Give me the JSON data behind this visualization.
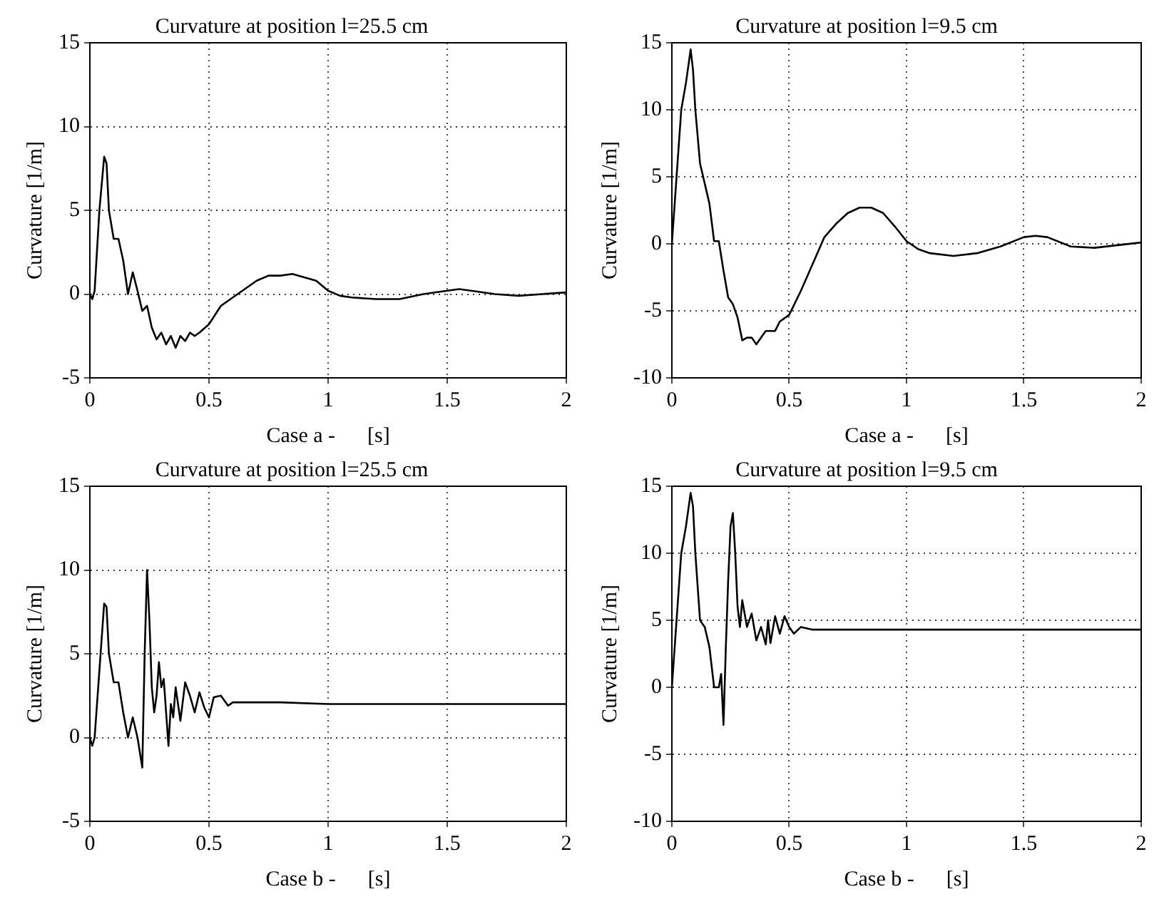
{
  "chart_data": [
    {
      "type": "line",
      "title": "Curvature at position l=25.5 cm",
      "xlabel": "Case a -      [s]",
      "ylabel": "Curvature [1/m]",
      "xlim": [
        0,
        2
      ],
      "xticks": [
        0,
        0.5,
        1,
        1.5,
        2
      ],
      "ylim": [
        -5,
        15
      ],
      "yticks": [
        -5,
        0,
        5,
        10,
        15
      ],
      "grid": true,
      "legend": false,
      "marker": "none",
      "line_style": "solid",
      "x": [
        0,
        0.01,
        0.02,
        0.04,
        0.06,
        0.07,
        0.08,
        0.1,
        0.12,
        0.14,
        0.16,
        0.18,
        0.2,
        0.22,
        0.24,
        0.26,
        0.28,
        0.3,
        0.32,
        0.34,
        0.36,
        0.38,
        0.4,
        0.42,
        0.44,
        0.46,
        0.5,
        0.55,
        0.6,
        0.65,
        0.7,
        0.75,
        0.8,
        0.85,
        0.9,
        0.95,
        1.0,
        1.05,
        1.1,
        1.2,
        1.3,
        1.4,
        1.5,
        1.55,
        1.6,
        1.7,
        1.8,
        1.9,
        2.0
      ],
      "series": [
        {
          "color": "#000000",
          "values": [
            0,
            -0.3,
            0.2,
            5,
            8.2,
            7.8,
            5,
            3.3,
            3.3,
            2,
            0,
            1.3,
            0.2,
            -1,
            -0.7,
            -2,
            -2.7,
            -2.3,
            -3,
            -2.5,
            -3.2,
            -2.5,
            -2.8,
            -2.3,
            -2.5,
            -2.3,
            -1.8,
            -0.7,
            -0.2,
            0.3,
            0.8,
            1.1,
            1.1,
            1.2,
            1.0,
            0.8,
            0.2,
            -0.1,
            -0.2,
            -0.3,
            -0.3,
            0,
            0.2,
            0.3,
            0.2,
            0,
            -0.1,
            0,
            0.1
          ]
        }
      ]
    },
    {
      "type": "line",
      "title": "Curvature at position l=9.5 cm",
      "xlabel": "Case a -      [s]",
      "ylabel": "Curvature [1/m]",
      "xlim": [
        0,
        2
      ],
      "xticks": [
        0,
        0.5,
        1,
        1.5,
        2
      ],
      "ylim": [
        -10,
        15
      ],
      "yticks": [
        -10,
        -5,
        0,
        5,
        10,
        15
      ],
      "grid": true,
      "legend": false,
      "marker": "none",
      "line_style": "solid",
      "x": [
        0,
        0.02,
        0.04,
        0.06,
        0.08,
        0.09,
        0.1,
        0.12,
        0.14,
        0.16,
        0.18,
        0.2,
        0.22,
        0.24,
        0.26,
        0.28,
        0.3,
        0.32,
        0.34,
        0.36,
        0.38,
        0.4,
        0.42,
        0.44,
        0.46,
        0.5,
        0.55,
        0.6,
        0.65,
        0.7,
        0.75,
        0.8,
        0.85,
        0.9,
        0.95,
        1.0,
        1.05,
        1.1,
        1.2,
        1.3,
        1.4,
        1.5,
        1.55,
        1.6,
        1.7,
        1.8,
        1.9,
        2.0
      ],
      "series": [
        {
          "color": "#000000",
          "values": [
            0,
            5,
            10,
            12,
            14.5,
            13,
            10,
            6,
            4.5,
            3,
            0.2,
            0.2,
            -2,
            -4,
            -4.5,
            -5.5,
            -7.2,
            -7,
            -7,
            -7.5,
            -7,
            -6.5,
            -6.5,
            -6.5,
            -5.8,
            -5.3,
            -3.5,
            -1.5,
            0.5,
            1.5,
            2.3,
            2.7,
            2.7,
            2.3,
            1.3,
            0.2,
            -0.4,
            -0.7,
            -0.9,
            -0.7,
            -0.2,
            0.5,
            0.6,
            0.5,
            -0.2,
            -0.3,
            -0.1,
            0.1
          ]
        }
      ]
    },
    {
      "type": "line",
      "title": "Curvature at position l=25.5 cm",
      "xlabel": "Case b -      [s]",
      "ylabel": "Curvature [1/m]",
      "xlim": [
        0,
        2
      ],
      "xticks": [
        0,
        0.5,
        1,
        1.5,
        2
      ],
      "ylim": [
        -5,
        15
      ],
      "yticks": [
        -5,
        0,
        5,
        10,
        15
      ],
      "grid": true,
      "legend": false,
      "marker": "none",
      "line_style": "solid",
      "x": [
        0,
        0.01,
        0.02,
        0.04,
        0.06,
        0.07,
        0.08,
        0.1,
        0.12,
        0.14,
        0.16,
        0.18,
        0.2,
        0.22,
        0.23,
        0.24,
        0.25,
        0.26,
        0.27,
        0.28,
        0.29,
        0.3,
        0.31,
        0.32,
        0.33,
        0.34,
        0.35,
        0.36,
        0.37,
        0.38,
        0.4,
        0.42,
        0.44,
        0.46,
        0.48,
        0.5,
        0.52,
        0.55,
        0.58,
        0.6,
        0.7,
        0.8,
        1,
        1.5,
        2
      ],
      "series": [
        {
          "color": "#000000",
          "values": [
            0,
            -0.5,
            0,
            4,
            8,
            7.8,
            5,
            3.3,
            3.3,
            1.5,
            0,
            1.2,
            0,
            -1.8,
            5,
            10,
            7,
            3,
            1.5,
            2.5,
            4.5,
            3,
            3.5,
            1.5,
            -0.5,
            2,
            1.2,
            3,
            2,
            1,
            3.3,
            2.5,
            1.5,
            2.7,
            1.8,
            1.2,
            2.4,
            2.5,
            1.9,
            2.1,
            2.1,
            2.1,
            2.0,
            2.0,
            2.0
          ]
        }
      ]
    },
    {
      "type": "line",
      "title": "Curvature at position l=9.5 cm",
      "xlabel": "Case b -      [s]",
      "ylabel": "Curvature [1/m]",
      "xlim": [
        0,
        2
      ],
      "xticks": [
        0,
        0.5,
        1,
        1.5,
        2
      ],
      "ylim": [
        -10,
        15
      ],
      "yticks": [
        -10,
        -5,
        0,
        5,
        10,
        15
      ],
      "grid": true,
      "legend": false,
      "marker": "none",
      "line_style": "solid",
      "x": [
        0,
        0.02,
        0.04,
        0.06,
        0.08,
        0.09,
        0.1,
        0.12,
        0.14,
        0.16,
        0.18,
        0.2,
        0.21,
        0.22,
        0.23,
        0.24,
        0.25,
        0.26,
        0.27,
        0.28,
        0.29,
        0.3,
        0.32,
        0.34,
        0.36,
        0.38,
        0.4,
        0.41,
        0.42,
        0.44,
        0.46,
        0.48,
        0.5,
        0.52,
        0.55,
        0.6,
        0.7,
        1,
        1.5,
        2
      ],
      "series": [
        {
          "color": "#000000",
          "values": [
            0,
            5,
            10,
            12,
            14.5,
            13.5,
            10,
            5,
            4.5,
            3,
            0,
            0,
            1,
            -2.8,
            3,
            8,
            12,
            13,
            10,
            6,
            4.5,
            6.5,
            4.5,
            5.5,
            3.5,
            4.5,
            3.2,
            5,
            3.3,
            5.3,
            4,
            5.3,
            4.5,
            4,
            4.5,
            4.3,
            4.3,
            4.3,
            4.3,
            4.3
          ]
        }
      ]
    }
  ]
}
